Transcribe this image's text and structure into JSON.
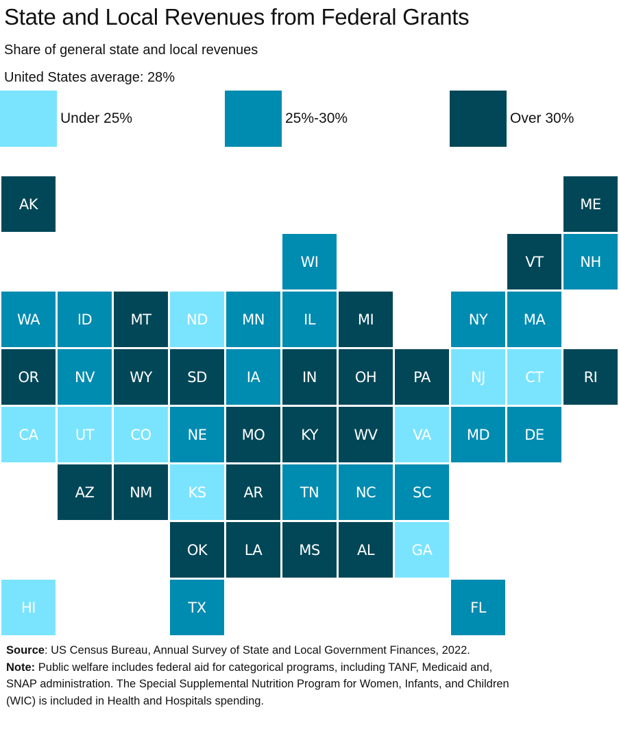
{
  "header": {
    "title": "State and Local Revenues from Federal Grants",
    "subtitle": "Share of general state and local revenues",
    "us_average": "United States average: 28%"
  },
  "colors": {
    "under_25": "#7ae4ff",
    "25_30": "#008bb0",
    "over_30": "#024757"
  },
  "legend": [
    {
      "label": "Under 25%",
      "category": "under_25"
    },
    {
      "label": "25%-30%",
      "category": "25_30"
    },
    {
      "label": "Over 30%",
      "category": "over_30"
    }
  ],
  "chart_data": {
    "type": "heatmap",
    "subtype": "tile-grid-map",
    "title": "State and Local Revenues from Federal Grants",
    "subtitle": "Share of general state and local revenues",
    "annotation": "United States average: 28%",
    "legend_placement": "top",
    "categories": [
      "Under 25%",
      "25%-30%",
      "Over 30%"
    ],
    "tiles": [
      {
        "state": "AK",
        "row": 0,
        "col": 0,
        "category": "over_30"
      },
      {
        "state": "ME",
        "row": 0,
        "col": 10,
        "category": "over_30"
      },
      {
        "state": "WI",
        "row": 1,
        "col": 5,
        "category": "25_30"
      },
      {
        "state": "VT",
        "row": 1,
        "col": 9,
        "category": "over_30"
      },
      {
        "state": "NH",
        "row": 1,
        "col": 10,
        "category": "25_30"
      },
      {
        "state": "WA",
        "row": 2,
        "col": 0,
        "category": "25_30"
      },
      {
        "state": "ID",
        "row": 2,
        "col": 1,
        "category": "25_30"
      },
      {
        "state": "MT",
        "row": 2,
        "col": 2,
        "category": "over_30"
      },
      {
        "state": "ND",
        "row": 2,
        "col": 3,
        "category": "under_25"
      },
      {
        "state": "MN",
        "row": 2,
        "col": 4,
        "category": "25_30"
      },
      {
        "state": "IL",
        "row": 2,
        "col": 5,
        "category": "25_30"
      },
      {
        "state": "MI",
        "row": 2,
        "col": 6,
        "category": "over_30"
      },
      {
        "state": "NY",
        "row": 2,
        "col": 8,
        "category": "25_30"
      },
      {
        "state": "MA",
        "row": 2,
        "col": 9,
        "category": "25_30"
      },
      {
        "state": "OR",
        "row": 3,
        "col": 0,
        "category": "over_30"
      },
      {
        "state": "NV",
        "row": 3,
        "col": 1,
        "category": "25_30"
      },
      {
        "state": "WY",
        "row": 3,
        "col": 2,
        "category": "over_30"
      },
      {
        "state": "SD",
        "row": 3,
        "col": 3,
        "category": "over_30"
      },
      {
        "state": "IA",
        "row": 3,
        "col": 4,
        "category": "25_30"
      },
      {
        "state": "IN",
        "row": 3,
        "col": 5,
        "category": "over_30"
      },
      {
        "state": "OH",
        "row": 3,
        "col": 6,
        "category": "over_30"
      },
      {
        "state": "PA",
        "row": 3,
        "col": 7,
        "category": "over_30"
      },
      {
        "state": "NJ",
        "row": 3,
        "col": 8,
        "category": "under_25"
      },
      {
        "state": "CT",
        "row": 3,
        "col": 9,
        "category": "under_25"
      },
      {
        "state": "RI",
        "row": 3,
        "col": 10,
        "category": "over_30"
      },
      {
        "state": "CA",
        "row": 4,
        "col": 0,
        "category": "under_25"
      },
      {
        "state": "UT",
        "row": 4,
        "col": 1,
        "category": "under_25"
      },
      {
        "state": "CO",
        "row": 4,
        "col": 2,
        "category": "under_25"
      },
      {
        "state": "NE",
        "row": 4,
        "col": 3,
        "category": "25_30"
      },
      {
        "state": "MO",
        "row": 4,
        "col": 4,
        "category": "over_30"
      },
      {
        "state": "KY",
        "row": 4,
        "col": 5,
        "category": "over_30"
      },
      {
        "state": "WV",
        "row": 4,
        "col": 6,
        "category": "over_30"
      },
      {
        "state": "VA",
        "row": 4,
        "col": 7,
        "category": "under_25"
      },
      {
        "state": "MD",
        "row": 4,
        "col": 8,
        "category": "25_30"
      },
      {
        "state": "DE",
        "row": 4,
        "col": 9,
        "category": "25_30"
      },
      {
        "state": "AZ",
        "row": 5,
        "col": 1,
        "category": "over_30"
      },
      {
        "state": "NM",
        "row": 5,
        "col": 2,
        "category": "over_30"
      },
      {
        "state": "KS",
        "row": 5,
        "col": 3,
        "category": "under_25"
      },
      {
        "state": "AR",
        "row": 5,
        "col": 4,
        "category": "over_30"
      },
      {
        "state": "TN",
        "row": 5,
        "col": 5,
        "category": "25_30"
      },
      {
        "state": "NC",
        "row": 5,
        "col": 6,
        "category": "25_30"
      },
      {
        "state": "SC",
        "row": 5,
        "col": 7,
        "category": "25_30"
      },
      {
        "state": "OK",
        "row": 6,
        "col": 3,
        "category": "over_30"
      },
      {
        "state": "LA",
        "row": 6,
        "col": 4,
        "category": "over_30"
      },
      {
        "state": "MS",
        "row": 6,
        "col": 5,
        "category": "over_30"
      },
      {
        "state": "AL",
        "row": 6,
        "col": 6,
        "category": "over_30"
      },
      {
        "state": "GA",
        "row": 6,
        "col": 7,
        "category": "under_25"
      },
      {
        "state": "HI",
        "row": 7,
        "col": 0,
        "category": "under_25"
      },
      {
        "state": "TX",
        "row": 7,
        "col": 3,
        "category": "25_30"
      },
      {
        "state": "FL",
        "row": 7,
        "col": 8,
        "category": "25_30"
      }
    ]
  },
  "footer": {
    "source_label": "Source",
    "source_text": ": US Census Bureau, Annual Survey of State and Local Government Finances, 2022.",
    "note_label": "Note:",
    "note_text": " Public welfare includes federal aid for categorical programs, including TANF, Medicaid and, SNAP administration. The Special Supplemental Nutrition Program for Women, Infants, and Children (WIC) is included in Health and Hospitals spending."
  }
}
